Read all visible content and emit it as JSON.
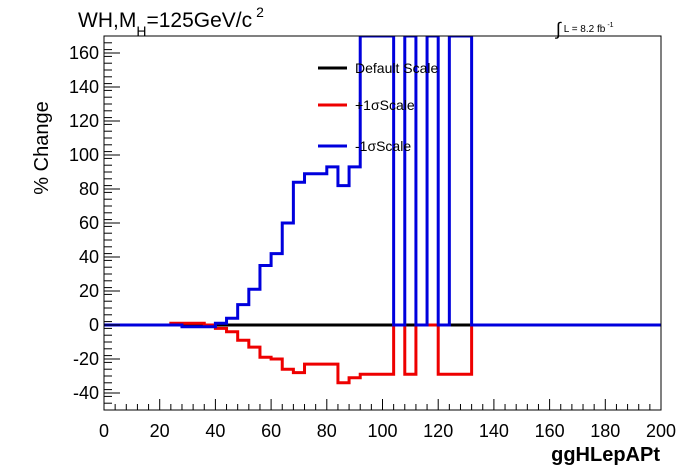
{
  "title": {
    "main": "WH,M",
    "sub": "H",
    "rest": "=125GeV/c",
    "sup": "2"
  },
  "lumi": {
    "prefix": "L = 8.2 fb",
    "sup": "-1"
  },
  "chart_data": {
    "type": "line",
    "title": "WH,MH=125GeV/c2",
    "xlabel": "ggHLepAPt",
    "ylabel": "% Change",
    "xlim": [
      0,
      200
    ],
    "ylim": [
      -50,
      170
    ],
    "xticks": [
      0,
      20,
      40,
      60,
      80,
      100,
      120,
      140,
      160,
      180,
      200
    ],
    "yticks": [
      -40,
      -20,
      0,
      20,
      40,
      60,
      80,
      100,
      120,
      140,
      160
    ],
    "grid": false,
    "legend_position": "top-center",
    "bin_width": 4,
    "bin_starts": [
      0,
      4,
      8,
      12,
      16,
      20,
      24,
      28,
      32,
      36,
      40,
      44,
      48,
      52,
      56,
      60,
      64,
      68,
      72,
      76,
      80,
      84,
      88,
      92,
      96,
      100,
      104,
      108,
      112,
      116,
      120,
      124,
      128,
      132,
      136,
      140,
      144,
      148,
      152,
      156,
      160,
      164,
      168,
      172,
      176,
      180,
      184,
      188,
      192,
      196
    ],
    "series": [
      {
        "name": "Default Scale",
        "color": "#000000",
        "values": [
          0,
          0,
          0,
          0,
          0,
          0,
          0,
          0,
          0,
          0,
          0,
          0,
          0,
          0,
          0,
          0,
          0,
          0,
          0,
          0,
          0,
          0,
          0,
          0,
          0,
          0,
          0,
          0,
          0,
          0,
          0,
          0,
          0,
          0,
          0,
          0,
          0,
          0,
          0,
          0,
          0,
          0,
          0,
          0,
          0,
          0,
          0,
          0,
          0,
          0
        ]
      },
      {
        "name": "+1σScale",
        "color": "#ee0000",
        "values": [
          0,
          0,
          0,
          0,
          0,
          0,
          1,
          1,
          1,
          0,
          -2,
          -4,
          -9,
          -13,
          -19,
          -20,
          -26,
          -28,
          -23,
          -23,
          -23,
          -34,
          -31,
          -29,
          -29,
          -29,
          0,
          -29,
          0,
          0,
          -29,
          -29,
          -29,
          0,
          0,
          0,
          0,
          0,
          0,
          0,
          0,
          0,
          0,
          0,
          0,
          0,
          0,
          0,
          0,
          0
        ]
      },
      {
        "name": "-1σScale",
        "color": "#0000dd",
        "values": [
          0,
          0,
          0,
          0,
          0,
          0,
          0,
          -1,
          -1,
          -1,
          1,
          4,
          12,
          21,
          35,
          42,
          60,
          84,
          89,
          89,
          93,
          82,
          93,
          170,
          170,
          170,
          0,
          170,
          0,
          170,
          0,
          170,
          170,
          0,
          0,
          0,
          0,
          0,
          0,
          0,
          0,
          0,
          0,
          0,
          0,
          0,
          0,
          0,
          0,
          0
        ]
      }
    ]
  }
}
